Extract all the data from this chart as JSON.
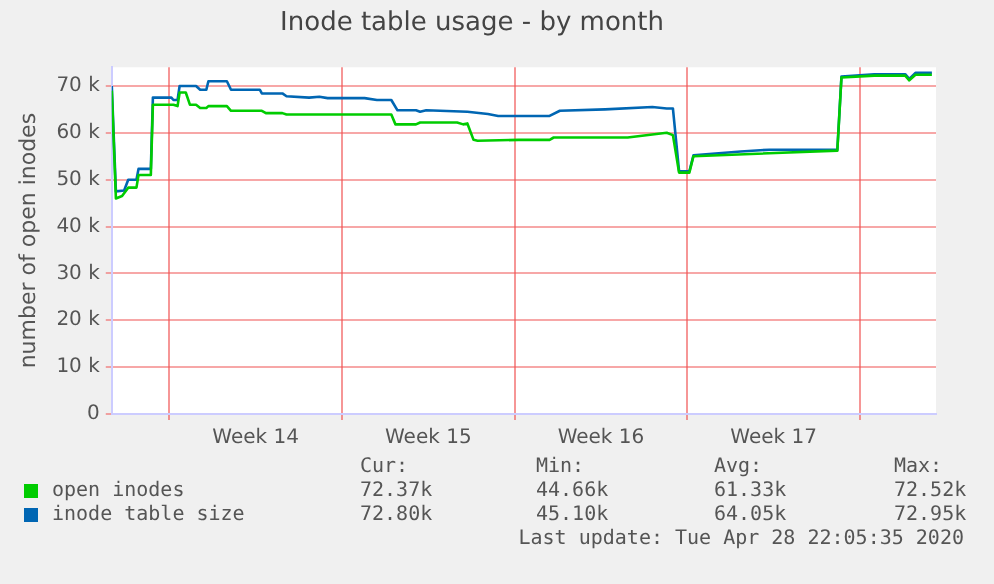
{
  "chart_data": {
    "type": "line",
    "title": "Inode table usage - by month",
    "ylabel": "number of open inodes",
    "xlim": [
      "2020-03-27T16:00",
      "2020-04-30T02:00"
    ],
    "ylim": [
      0,
      74000
    ],
    "xticks": [
      {
        "value": "2020-03-30",
        "label": null
      },
      {
        "value": "2020-04-02T12:00",
        "label": "Week 14"
      },
      {
        "value": "2020-04-06",
        "label": null
      },
      {
        "value": "2020-04-09T12:00",
        "label": "Week 15"
      },
      {
        "value": "2020-04-13",
        "label": null
      },
      {
        "value": "2020-04-16T12:00",
        "label": "Week 16"
      },
      {
        "value": "2020-04-20",
        "label": null
      },
      {
        "value": "2020-04-23T12:00",
        "label": "Week 17"
      },
      {
        "value": "2020-04-27",
        "label": null
      }
    ],
    "yticks": [
      {
        "value": 0,
        "label": "0"
      },
      {
        "value": 10000,
        "label": "10 k"
      },
      {
        "value": 20000,
        "label": "20 k"
      },
      {
        "value": 30000,
        "label": "30 k"
      },
      {
        "value": 40000,
        "label": "40 k"
      },
      {
        "value": 50000,
        "label": "50 k"
      },
      {
        "value": 60000,
        "label": "60 k"
      },
      {
        "value": 70000,
        "label": "70 k"
      }
    ],
    "grid": true,
    "legend": "bottom left",
    "marker": "none",
    "line_style": "solid",
    "annotations": [
      "Cur:",
      "Min:",
      "Avg:",
      "Max:",
      "72.37k",
      "44.66k",
      "61.33k",
      "72.52k",
      "72.80k",
      "45.10k",
      "64.05k",
      "72.95k",
      "Last update: Tue Apr 28 22:05:35 2020"
    ],
    "series": [
      {
        "name": "open inodes",
        "color": "#00cc00",
        "x": [
          "2020-03-27T16:00",
          "2020-03-27T20:00",
          "2020-03-28T02:00",
          "2020-03-28T08:00",
          "2020-03-28T16:00",
          "2020-03-28T18:00",
          "2020-03-29T06:00",
          "2020-03-29T08:00",
          "2020-03-30T04:00",
          "2020-03-30T08:00",
          "2020-03-30T10:00",
          "2020-03-30T16:00",
          "2020-03-30T20:00",
          "2020-03-31T02:00",
          "2020-03-31T06:00",
          "2020-03-31T12:00",
          "2020-03-31T14:00",
          "2020-04-01T08:00",
          "2020-04-01T12:00",
          "2020-04-02T18:00",
          "2020-04-02T22:00",
          "2020-04-03T14:00",
          "2020-04-03T18:00",
          "2020-04-08T00:00",
          "2020-04-08T04:00",
          "2020-04-09T00:00",
          "2020-04-09T04:00",
          "2020-04-10T16:00",
          "2020-04-10T22:00",
          "2020-04-11T02:00",
          "2020-04-11T08:00",
          "2020-04-11T12:00",
          "2020-04-13T04:00",
          "2020-04-14T10:00",
          "2020-04-14T14:00",
          "2020-04-17T14:00",
          "2020-04-19T04:00",
          "2020-04-19T10:00",
          "2020-04-19T16:00",
          "2020-04-20T02:00",
          "2020-04-20T06:00",
          "2020-04-26T02:00",
          "2020-04-26T06:00",
          "2020-04-27T14:00",
          "2020-04-28T20:00",
          "2020-04-29T00:00",
          "2020-04-29T06:00",
          "2020-04-29T22:00"
        ],
        "values": [
          69000,
          46000,
          46500,
          48300,
          48300,
          51000,
          51000,
          66000,
          66000,
          65700,
          68600,
          68600,
          66000,
          66000,
          65300,
          65300,
          65700,
          65700,
          64700,
          64700,
          64200,
          64200,
          63900,
          63900,
          61800,
          61800,
          62200,
          62200,
          61800,
          62000,
          58500,
          58300,
          58500,
          58500,
          59000,
          59000,
          60000,
          59500,
          51500,
          51500,
          55000,
          56200,
          71800,
          72200,
          72200,
          71200,
          72400,
          72400
        ]
      },
      {
        "name": "inode table size",
        "color": "#0066b3",
        "x": [
          "2020-03-27T16:00",
          "2020-03-27T20:00",
          "2020-03-28T04:00",
          "2020-03-28T08:00",
          "2020-03-28T16:00",
          "2020-03-28T18:00",
          "2020-03-29T06:00",
          "2020-03-29T08:00",
          "2020-03-30T02:00",
          "2020-03-30T04:00",
          "2020-03-30T08:00",
          "2020-03-30T10:00",
          "2020-03-31T02:00",
          "2020-03-31T06:00",
          "2020-03-31T12:00",
          "2020-03-31T14:00",
          "2020-04-01T08:00",
          "2020-04-01T12:00",
          "2020-04-02T16:00",
          "2020-04-02T18:00",
          "2020-04-03T14:00",
          "2020-04-03T18:00",
          "2020-04-04T16:00",
          "2020-04-05T02:00",
          "2020-04-05T10:00",
          "2020-04-06T22:00",
          "2020-04-07T10:00",
          "2020-04-08T00:00",
          "2020-04-08T06:00",
          "2020-04-09T00:00",
          "2020-04-09T04:00",
          "2020-04-09T10:00",
          "2020-04-11T02:00",
          "2020-04-11T22:00",
          "2020-04-12T08:00",
          "2020-04-14T10:00",
          "2020-04-14T20:00",
          "2020-04-16T16:00",
          "2020-04-18T14:00",
          "2020-04-19T04:00",
          "2020-04-19T10:00",
          "2020-04-19T16:00",
          "2020-04-20T02:00",
          "2020-04-20T06:00",
          "2020-04-22T04:00",
          "2020-04-23T08:00",
          "2020-04-26T02:00",
          "2020-04-26T06:00",
          "2020-04-27T14:00",
          "2020-04-28T20:00",
          "2020-04-29T00:00",
          "2020-04-29T06:00",
          "2020-04-29T22:00"
        ],
        "values": [
          70000,
          47500,
          47700,
          50000,
          50000,
          52300,
          52300,
          67500,
          67500,
          67000,
          67000,
          70000,
          70000,
          69200,
          69200,
          71000,
          71000,
          69200,
          69200,
          68400,
          68400,
          67800,
          67500,
          67700,
          67400,
          67400,
          67000,
          67000,
          64800,
          64800,
          64500,
          64800,
          64500,
          64000,
          63600,
          63600,
          64700,
          65000,
          65500,
          65200,
          65200,
          51800,
          51800,
          55200,
          56000,
          56400,
          56400,
          72000,
          72500,
          72500,
          71500,
          72800,
          72800
        ]
      }
    ]
  }
}
